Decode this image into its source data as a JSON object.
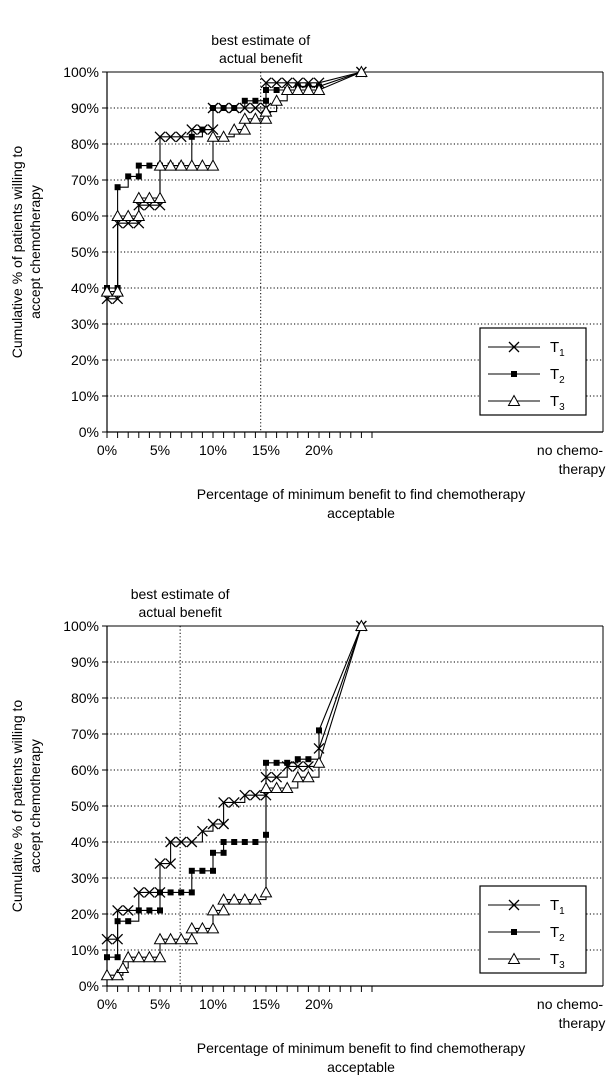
{
  "chart_data": [
    {
      "type": "line",
      "xlabel": "Percentage of minimum benefit to find chemotherapy acceptable",
      "ylabel": "Cumulative % of patients willing to accept chemotherapy",
      "x_tick_labels": [
        "0%",
        "5%",
        "10%",
        "15%",
        "20%",
        "no chemo-therapy"
      ],
      "y_tick_labels": [
        "0%",
        "10%",
        "20%",
        "30%",
        "40%",
        "50%",
        "60%",
        "70%",
        "80%",
        "90%",
        "100%"
      ],
      "xlim": [
        0,
        25.5
      ],
      "ylim": [
        0,
        100
      ],
      "grid": "horizontal dotted",
      "legend_position": "bottom-right",
      "reference_line": {
        "x": 14.5,
        "label": "best estimate of actual benefit"
      },
      "series": [
        {
          "name": "T1",
          "marker": "x",
          "stepped": true,
          "x": [
            0,
            1,
            1,
            2,
            3,
            3,
            4,
            5,
            5,
            6,
            7,
            8,
            9,
            10,
            10,
            11,
            12,
            13,
            14,
            15,
            15,
            16,
            17,
            18,
            19,
            20,
            24
          ],
          "y": [
            37,
            37,
            58,
            58,
            58,
            63,
            63,
            63,
            82,
            82,
            82,
            84,
            84,
            84,
            90,
            90,
            90,
            90,
            90,
            90,
            97,
            97,
            97,
            97,
            97,
            97,
            100
          ]
        },
        {
          "name": "T2",
          "marker": "square",
          "stepped": true,
          "x": [
            0,
            1,
            1,
            2,
            3,
            3,
            4,
            5,
            6,
            7,
            8,
            9,
            10,
            11,
            12,
            13,
            14,
            15,
            15,
            16,
            17,
            18,
            19,
            20,
            24
          ],
          "y": [
            40,
            40,
            68,
            71,
            71,
            74,
            74,
            74,
            74,
            74,
            82,
            84,
            90,
            90,
            90,
            92,
            92,
            92,
            95,
            95,
            95,
            96,
            96,
            96,
            100
          ]
        },
        {
          "name": "T3",
          "marker": "triangle",
          "stepped": true,
          "x": [
            0,
            1,
            1,
            2,
            3,
            3,
            4,
            5,
            5,
            6,
            7,
            8,
            9,
            10,
            10,
            11,
            12,
            13,
            13,
            14,
            15,
            15,
            16,
            17,
            18,
            19,
            20,
            24
          ],
          "y": [
            39,
            39,
            60,
            60,
            60,
            65,
            65,
            65,
            74,
            74,
            74,
            74,
            74,
            74,
            82,
            82,
            84,
            84,
            87,
            87,
            87,
            89,
            92,
            95,
            95,
            95,
            95,
            100
          ]
        }
      ]
    },
    {
      "type": "line",
      "xlabel": "Percentage of minimum benefit to find chemotherapy acceptable",
      "ylabel": "Cumulative % of patients willing to accept chemotherapy",
      "x_tick_labels": [
        "0%",
        "5%",
        "10%",
        "15%",
        "20%",
        "no chemo-therapy"
      ],
      "y_tick_labels": [
        "0%",
        "10%",
        "20%",
        "30%",
        "40%",
        "50%",
        "60%",
        "70%",
        "80%",
        "90%",
        "100%"
      ],
      "xlim": [
        0,
        25.5
      ],
      "ylim": [
        0,
        100
      ],
      "grid": "horizontal dotted",
      "legend_position": "bottom-right",
      "reference_line": {
        "x": 6.9,
        "label": "best estimate of actual benefit"
      },
      "series": [
        {
          "name": "T1",
          "marker": "x",
          "stepped": true,
          "x": [
            0,
            1,
            1,
            2,
            3,
            4,
            5,
            5,
            6,
            6,
            7,
            8,
            9,
            10,
            11,
            11,
            12,
            13,
            14,
            15,
            15,
            16,
            17,
            18,
            19,
            20,
            24
          ],
          "y": [
            13,
            13,
            21,
            21,
            26,
            26,
            26,
            34,
            34,
            40,
            40,
            40,
            43,
            45,
            45,
            51,
            51,
            53,
            53,
            53,
            58,
            58,
            61,
            61,
            61,
            66,
            100
          ]
        },
        {
          "name": "T2",
          "marker": "square",
          "stepped": true,
          "x": [
            0,
            1,
            1,
            2,
            3,
            4,
            5,
            5,
            6,
            7,
            8,
            8,
            9,
            10,
            10,
            11,
            11,
            12,
            13,
            14,
            15,
            15,
            16,
            17,
            18,
            19,
            20,
            24
          ],
          "y": [
            8,
            8,
            18,
            18,
            21,
            21,
            21,
            26,
            26,
            26,
            26,
            32,
            32,
            32,
            37,
            37,
            40,
            40,
            40,
            40,
            42,
            62,
            62,
            62,
            63,
            63,
            71,
            100
          ]
        },
        {
          "name": "T3",
          "marker": "triangle",
          "stepped": true,
          "x": [
            0,
            1,
            1.5,
            2,
            3,
            4,
            5,
            5,
            6,
            7,
            8,
            8,
            9,
            10,
            10,
            11,
            11,
            12,
            13,
            14,
            15,
            15,
            16,
            17,
            18,
            19,
            20,
            24
          ],
          "y": [
            3,
            3,
            5,
            8,
            8,
            8,
            8,
            13,
            13,
            13,
            13,
            16,
            16,
            16,
            21,
            21,
            24,
            24,
            24,
            24,
            26,
            55,
            55,
            55,
            58,
            58,
            62,
            100
          ]
        }
      ]
    }
  ]
}
